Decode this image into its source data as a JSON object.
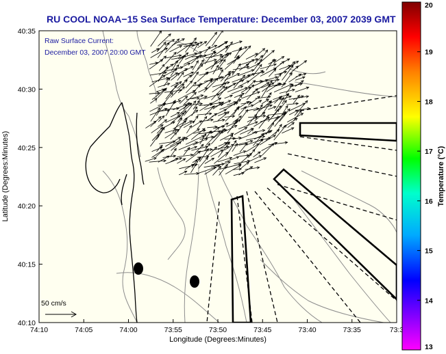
{
  "title": "RU COOL  NOAA−15  Sea Surface Temperature:  December 03, 2007 2039 GMT",
  "annotation": {
    "line1": "Raw Surface Current:",
    "line2": "December 03, 2007 20:00 GMT"
  },
  "axes": {
    "xlabel": "Longitude (Degrees:Minutes)",
    "ylabel": "Latitude (Degrees:Minutes)",
    "x_ticks": [
      "74:10",
      "74:05",
      "74:00",
      "73:55",
      "73:50",
      "73:45",
      "73:40",
      "73:35",
      "73:3"
    ],
    "y_ticks": [
      "40:35",
      "40:30",
      "40:25",
      "40:20",
      "40:15",
      "40:10"
    ]
  },
  "scale": {
    "label": "50 cm/s",
    "value_cm_s": 50
  },
  "colorbar": {
    "label": "Temperature (°C)",
    "min": 13,
    "max": 20,
    "ticks": [
      "20",
      "19",
      "18",
      "17",
      "16",
      "15",
      "14",
      "13"
    ]
  },
  "colors": {
    "title": "#1a1aa0",
    "annotation": "#1a1aa0",
    "land_fill": "#fffff0",
    "contour": "#8c8c8c",
    "coast": "#000000",
    "vector": "#000000"
  },
  "icons": [
    "vector-arrow-icon",
    "scale-arrow-icon"
  ]
}
